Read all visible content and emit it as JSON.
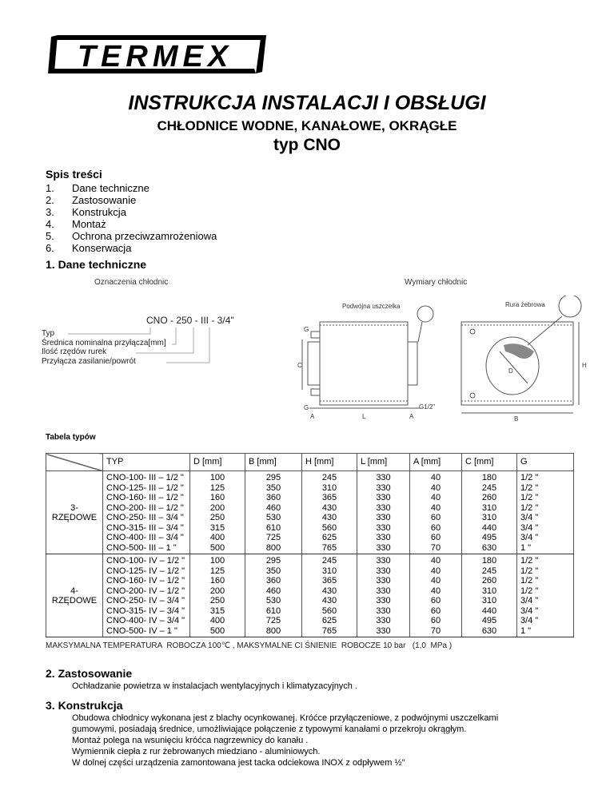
{
  "logo": {
    "text": "TERMEX"
  },
  "header": {
    "title": "INSTRUKCJA INSTALACJI I OBSŁUGI",
    "subtitle": "CHŁODNICE  WODNE, KANAŁOWE, OKRĄGŁE",
    "type": "typ   CNO"
  },
  "toc": {
    "heading": "Spis treści",
    "items": [
      {
        "n": "1.",
        "label": "Dane techniczne"
      },
      {
        "n": "2.",
        "label": "Zastosowanie"
      },
      {
        "n": "3.",
        "label": "Konstrukcja"
      },
      {
        "n": "4.",
        "label": "Montaż"
      },
      {
        "n": "5.",
        "label": "Ochrona przeciwzamrożeniowa"
      },
      {
        "n": "6.",
        "label": "Konserwacja"
      }
    ]
  },
  "section1": {
    "heading": "1.  Dane techniczne",
    "designation_caption": "Oznaczenia chłodnic",
    "dimensions_caption": "Wymiary chłodnic",
    "code": "CNO - 250 - III - 3/4\"",
    "legend": [
      "Typ",
      "Średnica nominalna przyłącza[mm]",
      "Ilość rzędów rurek",
      "Przyłącza zasilanie/powrót"
    ],
    "labels": {
      "seal": "Podwójna uszczelka",
      "tube": "Rura żebrowa",
      "G": "G",
      "C": "C",
      "A": "A",
      "L": "L",
      "G12": "G1/2\"",
      "D": "D",
      "H": "H",
      "B": "B"
    },
    "table_caption": "Tabela  typów",
    "table": {
      "headers": [
        "TYP",
        "D [mm]",
        "B [mm]",
        "H [mm]",
        "L [mm]",
        "A [mm]",
        "C [mm]",
        "G"
      ],
      "groups": [
        {
          "label": "3-\nRZĘDOWE",
          "typ": "CNO-100- III – 1/2 \"\nCNO-125- III – 1/2 \"\nCNO-160- III – 1/2 \"\nCNO-200- III – 1/2 \"\nCNO-250- III – 3/4 \"\nCNO-315- III – 3/4 \"\nCNO-400- III – 3/4 \"\nCNO-500- III – 1 \"",
          "D": "100\n125\n160\n200\n250\n315\n400\n500",
          "B": "295\n350\n360\n460\n530\n610\n725\n800",
          "H": "245\n310\n365\n430\n430\n560\n625\n765",
          "L": "330\n330\n330\n330\n330\n330\n330\n330",
          "A": "40\n40\n40\n40\n60\n60\n60\n70",
          "C": "180\n245\n260\n310\n310\n440\n495\n630",
          "G": "1/2 \"\n1/2 \"\n1/2 \"\n1/2 \"\n3/4 \"\n3/4 \"\n3/4 \"\n1 \""
        },
        {
          "label": "4-\nRZĘDOWE",
          "typ": "CNO-100- IV – 1/2 \"\nCNO-125- IV – 1/2 \"\nCNO-160- IV – 1/2 \"\nCNO-200- IV – 1/2 \"\nCNO-250- IV – 3/4 \"\nCNO-315- IV – 3/4 \"\nCNO-400- IV – 3/4 \"\nCNO-500- IV – 1 \"",
          "D": "100\n125\n160\n200\n250\n315\n400\n500",
          "B": "295\n350\n360\n460\n530\n610\n725\n800",
          "H": "245\n310\n365\n430\n430\n560\n625\n765",
          "L": "330\n330\n330\n330\n330\n330\n330\n330",
          "A": "40\n40\n40\n40\n60\n60\n60\n70",
          "C": "180\n245\n260\n310\n310\n440\n495\n630",
          "G": "1/2 \"\n1/2 \"\n1/2 \"\n1/2 \"\n3/4 \"\n3/4 \"\n3/4 \"\n1 \""
        }
      ]
    },
    "note": "MAKSYMALNA TEMPERATURA  ROBOCZA 100℃ , MAKSYMALNE CI ŚNIENIE  ROBOCZE 10 bar   (1,0  MPa )"
  },
  "section2": {
    "heading": "2.  Zastosowanie",
    "text": "Ochładzanie powietrza w instalacjach  wentylacyjnych i klimatyzacyjnych ."
  },
  "section3": {
    "heading": "3.  Konstrukcja",
    "lines": [
      "Obudowa chłodnicy wykonana jest z blachy ocynkowanej. Króćce przyłączeniowe, z podwójnymi uszczelkami",
      "gumowymi, posiadają średnice, umożliwiające połączenie z typowymi kanałami o przekroju okrągłym.",
      "Montaż polega na wsunięciu króćca nagrzewnicy do kanału .",
      "Wymiennik ciepła z rur żebrowanych miedziano - aluminiowych.",
      "W dolnej części urządzenia zamontowana jest tacka odciekowa INOX z odpływem ½\""
    ]
  }
}
